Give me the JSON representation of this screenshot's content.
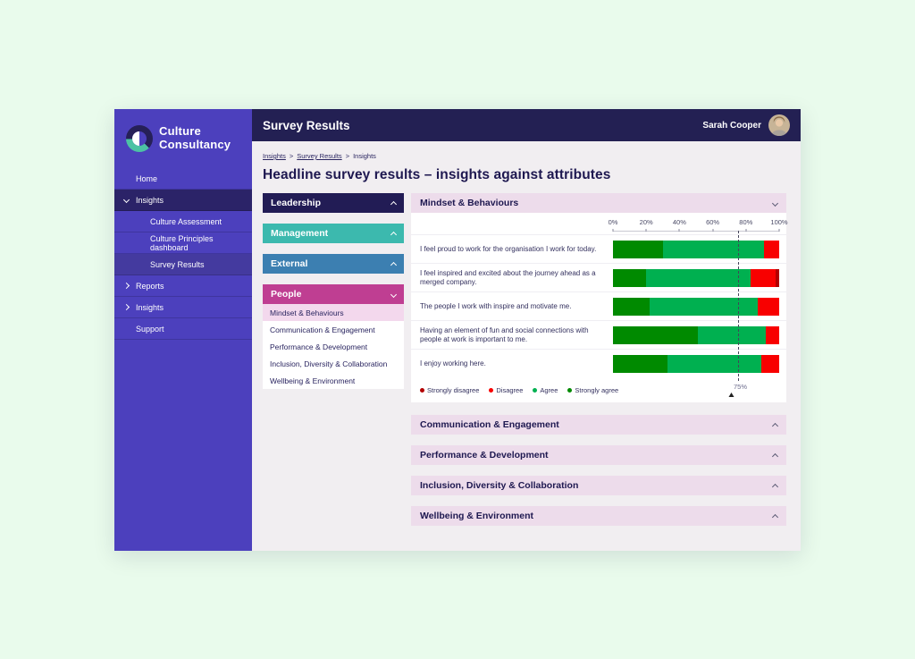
{
  "sidebar": {
    "brand": {
      "line1": "Culture",
      "line2": "Consultancy"
    },
    "items": [
      {
        "label": "Home",
        "level": 1
      },
      {
        "label": "Insights",
        "level": 1,
        "chevron": "down",
        "state": "expanded"
      },
      {
        "label": "Culture Assessment",
        "level": 2
      },
      {
        "label": "Culture Principles dashboard",
        "level": 2
      },
      {
        "label": "Survey Results",
        "level": 2,
        "state": "selected"
      },
      {
        "label": "Reports",
        "level": 1,
        "chevron": "right"
      },
      {
        "label": "Insights",
        "level": 1,
        "chevron": "right"
      },
      {
        "label": "Support",
        "level": 1
      }
    ]
  },
  "header": {
    "title": "Survey Results",
    "user_name": "Sarah Cooper"
  },
  "breadcrumb": {
    "separator": ">",
    "items": [
      "Insights",
      "Survey Results",
      "Insights"
    ]
  },
  "page": {
    "title": "Headline survey results – insights against attributes"
  },
  "categories_panel": [
    {
      "label": "Leadership",
      "color": "#221c55",
      "chevron": "up"
    },
    {
      "label": "Management",
      "color": "#3cb9ae",
      "chevron": "up"
    },
    {
      "label": "External",
      "color": "#3c7fb1",
      "chevron": "up"
    },
    {
      "label": "People",
      "color": "#bf3e92",
      "chevron": "down",
      "sub_items": [
        {
          "label": "Mindset & Behaviours",
          "selected": true
        },
        {
          "label": "Communication & Engagement",
          "selected": false
        },
        {
          "label": "Performance & Development",
          "selected": false
        },
        {
          "label": "Inclusion, Diversity & Collaboration",
          "selected": false
        },
        {
          "label": "Wellbeing & Environment",
          "selected": false
        }
      ]
    }
  ],
  "sections": {
    "active_title": "Mindset & Behaviours",
    "collapsed": [
      "Communication & Engagement",
      "Performance & Development",
      "Inclusion, Diversity & Collaboration",
      "Wellbeing & Environment"
    ]
  },
  "chart_data": {
    "type": "bar",
    "orientation": "horizontal_stacked",
    "title": "Mindset & Behaviours",
    "axis_ticks": [
      "0%",
      "20%",
      "40%",
      "60%",
      "80%",
      "100%"
    ],
    "xlim": [
      0,
      100
    ],
    "grid": false,
    "legend_position": "bottom",
    "target_line": {
      "value": 75,
      "label": "75%"
    },
    "legend": [
      {
        "key": "strongly_disagree",
        "label": "Strongly disagree",
        "color": "#b30000"
      },
      {
        "key": "disagree",
        "label": "Disagree",
        "color": "#f80000"
      },
      {
        "key": "agree",
        "label": "Agree",
        "color": "#00b050"
      },
      {
        "key": "strongly_agree",
        "label": "Strongly agree",
        "color": "#008a00"
      }
    ],
    "segment_order": [
      "strongly_agree",
      "agree",
      "disagree",
      "strongly_disagree"
    ],
    "questions": [
      {
        "label": "I feel proud to work for the organisation I work for today.",
        "strongly_agree": 30,
        "agree": 61,
        "disagree": 9,
        "strongly_disagree": 0
      },
      {
        "label": "I feel inspired and excited about the journey ahead as a merged company.",
        "strongly_agree": 20,
        "agree": 63,
        "disagree": 15,
        "strongly_disagree": 2
      },
      {
        "label": "The people I work with inspire and motivate me.",
        "strongly_agree": 22,
        "agree": 65,
        "disagree": 13,
        "strongly_disagree": 0
      },
      {
        "label": "Having an element of fun and social connections with people at work is important to me.",
        "strongly_agree": 51,
        "agree": 41,
        "disagree": 8,
        "strongly_disagree": 0
      },
      {
        "label": "I enjoy working here.",
        "strongly_agree": 33,
        "agree": 56,
        "disagree": 11,
        "strongly_disagree": 0
      }
    ]
  }
}
